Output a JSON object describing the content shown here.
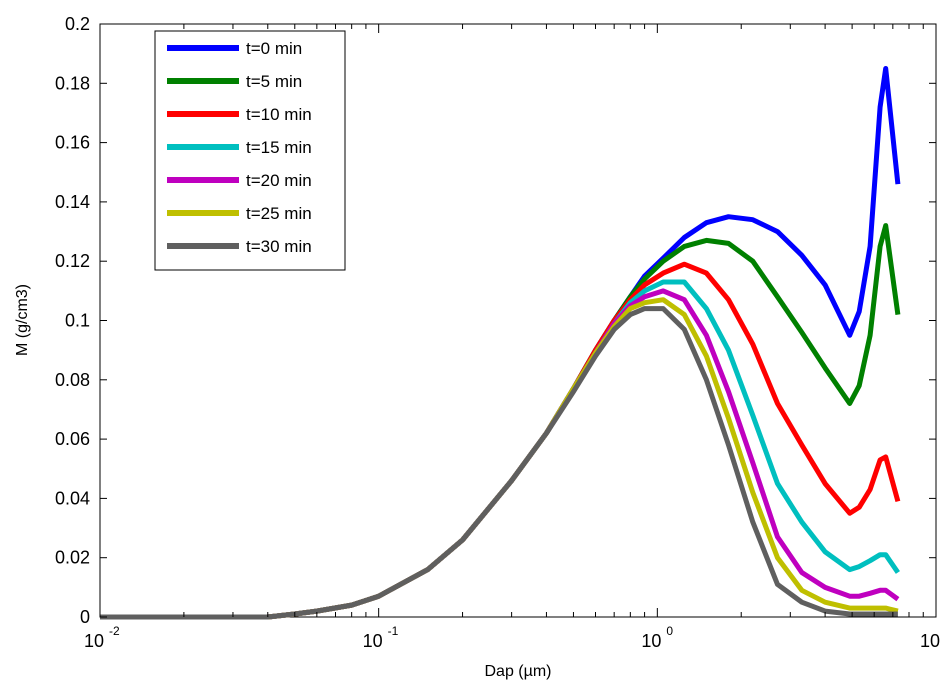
{
  "chart_data": {
    "type": "line",
    "xscale": "log",
    "xlabel": "Dap (µm)",
    "ylabel": "M (g/cm3)",
    "xlim": [
      0.01,
      10
    ],
    "ylim": [
      0,
      0.2
    ],
    "x_ticks": [
      {
        "value": 0.01,
        "base": "10",
        "exp": "-2"
      },
      {
        "value": 0.1,
        "base": "10",
        "exp": "-1"
      },
      {
        "value": 1,
        "base": "10",
        "exp": "0"
      },
      {
        "value": 10,
        "base": "10",
        "exp": "1"
      }
    ],
    "y_ticks": [
      "0",
      "0.02",
      "0.04",
      "0.06",
      "0.08",
      "0.1",
      "0.12",
      "0.14",
      "0.16",
      "0.18",
      "0.2"
    ],
    "grid": false,
    "legend_position": "top-left",
    "x": [
      0.01,
      0.04,
      0.05,
      0.06,
      0.08,
      0.1,
      0.15,
      0.2,
      0.3,
      0.4,
      0.5,
      0.6,
      0.7,
      0.8,
      0.9,
      1.05,
      1.25,
      1.5,
      1.8,
      2.2,
      2.7,
      3.3,
      4.0,
      4.9,
      5.3,
      5.8,
      6.3,
      6.6,
      7.3
    ],
    "series": [
      {
        "name": "t=0 min",
        "color": "#0000ff",
        "values": [
          0,
          0,
          0.001,
          0.002,
          0.004,
          0.007,
          0.016,
          0.026,
          0.046,
          0.062,
          0.077,
          0.09,
          0.1,
          0.108,
          0.115,
          0.121,
          0.128,
          0.133,
          0.135,
          0.134,
          0.13,
          0.122,
          0.112,
          0.095,
          0.103,
          0.125,
          0.172,
          0.185,
          0.146
        ]
      },
      {
        "name": "t=5 min",
        "color": "#008000",
        "values": [
          0,
          0,
          0.001,
          0.002,
          0.004,
          0.007,
          0.016,
          0.026,
          0.046,
          0.062,
          0.077,
          0.09,
          0.1,
          0.108,
          0.114,
          0.12,
          0.125,
          0.127,
          0.126,
          0.12,
          0.108,
          0.096,
          0.084,
          0.072,
          0.078,
          0.095,
          0.125,
          0.132,
          0.102
        ]
      },
      {
        "name": "t=10 min",
        "color": "#ff0000",
        "values": [
          0,
          0,
          0.001,
          0.002,
          0.004,
          0.007,
          0.016,
          0.026,
          0.046,
          0.062,
          0.077,
          0.09,
          0.1,
          0.107,
          0.112,
          0.116,
          0.119,
          0.116,
          0.107,
          0.092,
          0.072,
          0.058,
          0.045,
          0.035,
          0.037,
          0.043,
          0.053,
          0.054,
          0.039
        ]
      },
      {
        "name": "t=15 min",
        "color": "#00bfbf",
        "values": [
          0,
          0,
          0.001,
          0.002,
          0.004,
          0.007,
          0.016,
          0.026,
          0.046,
          0.062,
          0.077,
          0.089,
          0.099,
          0.106,
          0.11,
          0.113,
          0.113,
          0.104,
          0.09,
          0.068,
          0.045,
          0.032,
          0.022,
          0.016,
          0.017,
          0.019,
          0.021,
          0.021,
          0.015
        ]
      },
      {
        "name": "t=20 min",
        "color": "#bf00bf",
        "values": [
          0,
          0,
          0.001,
          0.002,
          0.004,
          0.007,
          0.016,
          0.026,
          0.046,
          0.062,
          0.077,
          0.089,
          0.099,
          0.105,
          0.108,
          0.11,
          0.107,
          0.095,
          0.076,
          0.052,
          0.027,
          0.015,
          0.01,
          0.007,
          0.007,
          0.008,
          0.009,
          0.009,
          0.006
        ]
      },
      {
        "name": "t=25 min",
        "color": "#bfbf00",
        "values": [
          0,
          0,
          0.001,
          0.002,
          0.004,
          0.007,
          0.016,
          0.026,
          0.046,
          0.062,
          0.077,
          0.089,
          0.098,
          0.104,
          0.106,
          0.107,
          0.102,
          0.088,
          0.067,
          0.042,
          0.02,
          0.009,
          0.005,
          0.003,
          0.003,
          0.003,
          0.003,
          0.003,
          0.002
        ]
      },
      {
        "name": "t=30 min",
        "color": "#5f5f5f",
        "values": [
          0,
          0,
          0.001,
          0.002,
          0.004,
          0.007,
          0.016,
          0.026,
          0.046,
          0.062,
          0.076,
          0.088,
          0.097,
          0.102,
          0.104,
          0.104,
          0.097,
          0.08,
          0.058,
          0.032,
          0.011,
          0.005,
          0.002,
          0.001,
          0.001,
          0.001,
          0.001,
          0.001,
          0.001
        ]
      }
    ]
  }
}
